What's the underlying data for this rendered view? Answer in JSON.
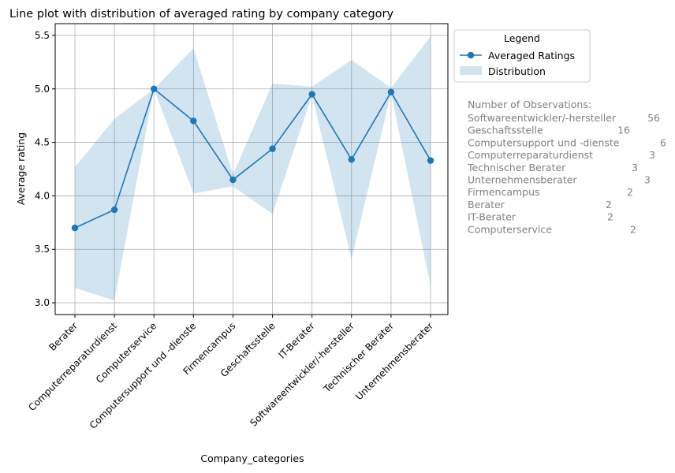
{
  "chart_data": {
    "type": "line",
    "title": "Line plot with distribution of averaged rating by company category",
    "xlabel": "Company_categories",
    "ylabel": "Average rating",
    "categories": [
      "Berater",
      "Computerreparaturdienst",
      "Computerservice",
      "Computersupport und -dienste",
      "Firmencampus",
      "Geschaftsstelle",
      "IT-Berater",
      "Softwareentwickler/-hersteller",
      "Technischer Berater",
      "Unternehmensberater"
    ],
    "series": [
      {
        "name": "Averaged Ratings",
        "values": [
          3.7,
          3.87,
          5.0,
          4.7,
          4.15,
          4.44,
          4.95,
          4.34,
          4.97,
          4.33
        ],
        "color": "#1f77b4"
      }
    ],
    "distribution": {
      "name": "Distribution",
      "lower": [
        3.14,
        3.02,
        5.0,
        4.02,
        4.09,
        3.83,
        4.94,
        3.41,
        4.96,
        3.16
      ],
      "upper": [
        4.27,
        4.72,
        5.0,
        5.38,
        4.2,
        5.05,
        5.02,
        5.27,
        5.01,
        5.49
      ],
      "color": "#1f77b4",
      "opacity": 0.2
    },
    "ylim": [
      2.89,
      5.61
    ],
    "yticks": [
      "3.0",
      "3.5",
      "4.0",
      "4.5",
      "5.0",
      "5.5"
    ],
    "grid": true,
    "legend": {
      "title": "Legend",
      "placement": "outside upper right",
      "entries": [
        "Averaged Ratings",
        "Distribution"
      ]
    },
    "observations": {
      "header": "Number of Observations:",
      "rows": [
        {
          "name": "Softwareentwickler/-hersteller",
          "count": "56"
        },
        {
          "name": "Geschaftsstelle",
          "count": "16"
        },
        {
          "name": "Computersupport und -dienste",
          "count": "6"
        },
        {
          "name": "Computerreparaturdienst",
          "count": "3"
        },
        {
          "name": "Technischer Berater",
          "count": "3"
        },
        {
          "name": "Unternehmensberater",
          "count": "3"
        },
        {
          "name": "Firmencampus",
          "count": "2"
        },
        {
          "name": "Berater",
          "count": "2"
        },
        {
          "name": "IT-Berater",
          "count": "2"
        },
        {
          "name": "Computerservice",
          "count": "2"
        }
      ]
    }
  }
}
